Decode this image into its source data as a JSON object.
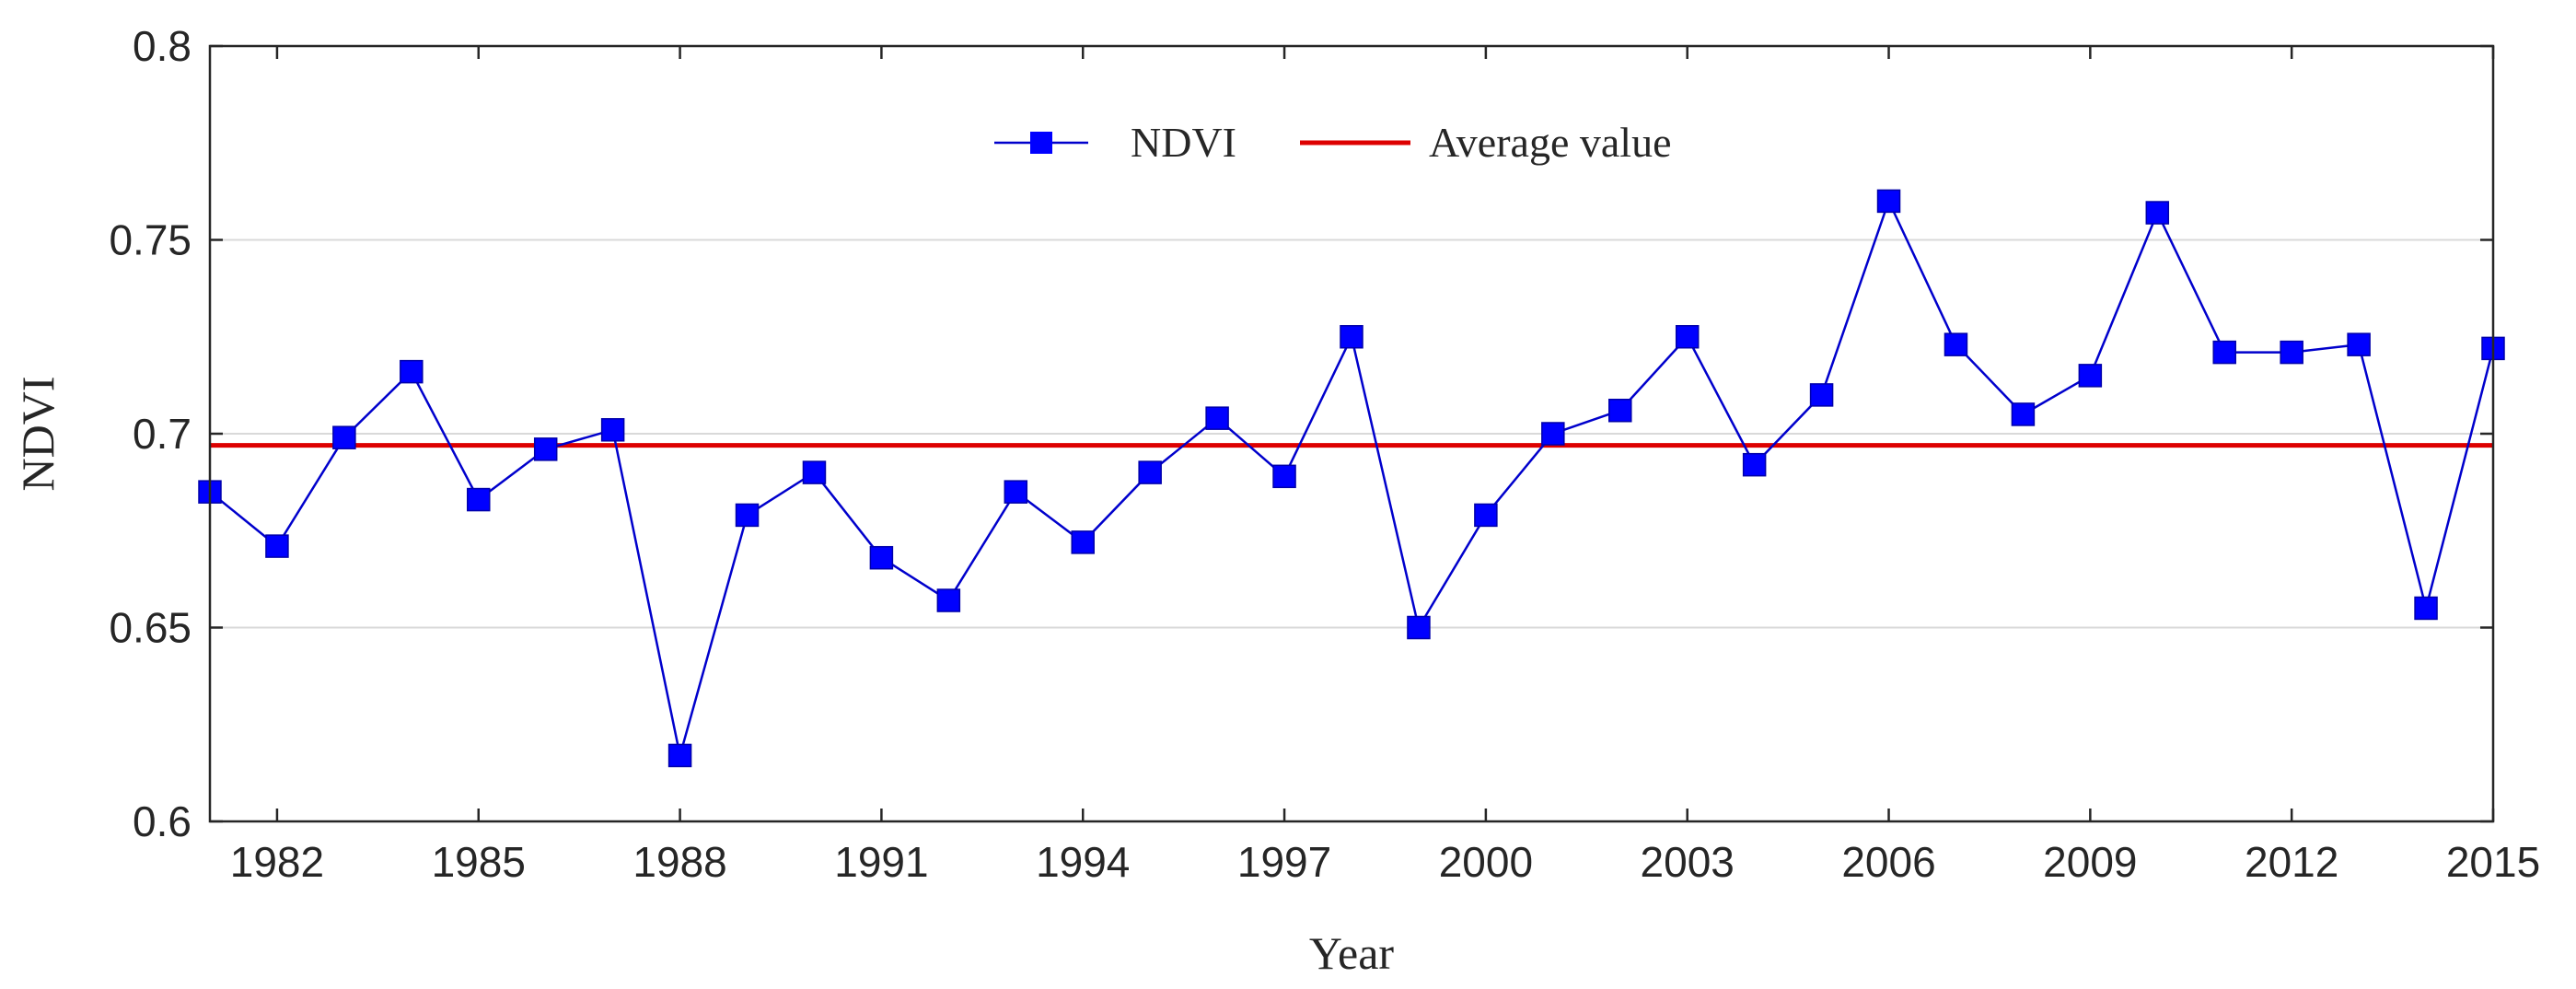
{
  "chart_data": {
    "type": "line",
    "title": "",
    "xlabel": "Year",
    "ylabel": "NDVI",
    "xlim": [
      1981,
      2015
    ],
    "ylim": [
      0.6,
      0.8
    ],
    "grid": "horizontal",
    "legend_position": "top-center",
    "x_ticks": [
      1982,
      1985,
      1988,
      1991,
      1994,
      1997,
      2000,
      2003,
      2006,
      2009,
      2012,
      2015
    ],
    "y_ticks": [
      0.6,
      0.65,
      0.7,
      0.75,
      0.8
    ],
    "y_tick_labels": [
      "0.6",
      "0.65",
      "0.7",
      "0.75",
      "0.8"
    ],
    "series": [
      {
        "name": "NDVI",
        "color": "#0000cc",
        "marker_color": "#0000ff",
        "marker": "square",
        "x": [
          1981,
          1982,
          1983,
          1984,
          1985,
          1986,
          1987,
          1988,
          1989,
          1990,
          1991,
          1992,
          1993,
          1994,
          1995,
          1996,
          1997,
          1998,
          1999,
          2000,
          2001,
          2002,
          2003,
          2004,
          2005,
          2006,
          2007,
          2008,
          2009,
          2010,
          2011,
          2012,
          2013,
          2014,
          2015
        ],
        "values": [
          0.685,
          0.671,
          0.699,
          0.716,
          0.683,
          0.696,
          0.701,
          0.617,
          0.679,
          0.69,
          0.668,
          0.657,
          0.685,
          0.672,
          0.69,
          0.704,
          0.689,
          0.725,
          0.65,
          0.679,
          0.7,
          0.706,
          0.725,
          0.692,
          0.71,
          0.76,
          0.723,
          0.705,
          0.715,
          0.757,
          0.721,
          0.721,
          0.723,
          0.655,
          0.722
        ]
      }
    ],
    "reference_lines": [
      {
        "name": "Average value",
        "value": 0.697,
        "color": "#dd0000"
      }
    ]
  }
}
